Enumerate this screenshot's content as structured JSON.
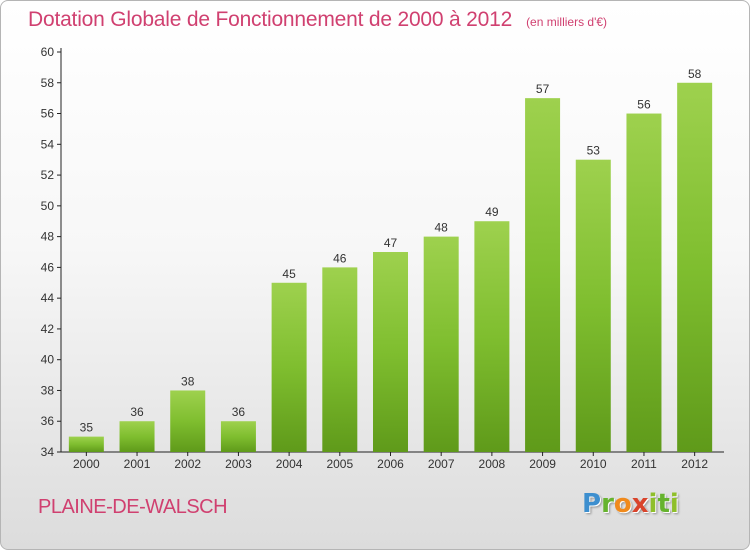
{
  "chart_data": {
    "type": "bar",
    "title": "Dotation Globale de Fonctionnement de 2000 à 2012",
    "unit": "(en milliers d'€)",
    "categories": [
      "2000",
      "2001",
      "2002",
      "2003",
      "2004",
      "2005",
      "2006",
      "2007",
      "2008",
      "2009",
      "2010",
      "2011",
      "2012"
    ],
    "values": [
      35,
      36,
      38,
      36,
      45,
      46,
      47,
      48,
      49,
      57,
      53,
      56,
      58
    ],
    "ylim": [
      34,
      60
    ],
    "yticks": [
      34,
      36,
      38,
      40,
      42,
      44,
      46,
      48,
      50,
      52,
      54,
      56,
      58,
      60
    ],
    "grid": false,
    "bar_color": "#7fbe2f",
    "bar_color_top": "#9ed14e",
    "bar_color_bottom": "#5f9a1a"
  },
  "commune": "PLAINE-DE-WALSCH",
  "logo": {
    "parts": [
      "P",
      "r",
      "o",
      "x",
      "i",
      "t",
      "i"
    ]
  }
}
